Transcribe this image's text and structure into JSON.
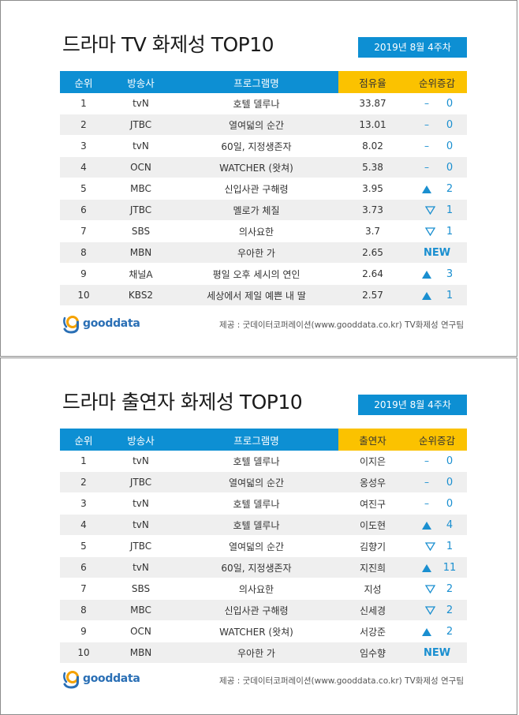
{
  "panel1": {
    "title": "드라마 TV 화제성 TOP10",
    "date": "2019년 8월 4주차",
    "headers": [
      "순위",
      "방송사",
      "프로그램명",
      "점유율",
      "순위증감"
    ],
    "rows": [
      {
        "rank": "1",
        "broadcaster": "tvN",
        "program": "호텔 델루나",
        "value": "33.87",
        "change": "same",
        "change_num": "0"
      },
      {
        "rank": "2",
        "broadcaster": "JTBC",
        "program": "열여덟의 순간",
        "value": "13.01",
        "change": "same",
        "change_num": "0"
      },
      {
        "rank": "3",
        "broadcaster": "tvN",
        "program": "60일, 지정생존자",
        "value": "8.02",
        "change": "same",
        "change_num": "0"
      },
      {
        "rank": "4",
        "broadcaster": "OCN",
        "program": "WATCHER (왓쳐)",
        "value": "5.38",
        "change": "same",
        "change_num": "0"
      },
      {
        "rank": "5",
        "broadcaster": "MBC",
        "program": "신입사관 구해령",
        "value": "3.95",
        "change": "up",
        "change_num": "2"
      },
      {
        "rank": "6",
        "broadcaster": "JTBC",
        "program": "멜로가 체질",
        "value": "3.73",
        "change": "down",
        "change_num": "1"
      },
      {
        "rank": "7",
        "broadcaster": "SBS",
        "program": "의사요한",
        "value": "3.7",
        "change": "down",
        "change_num": "1"
      },
      {
        "rank": "8",
        "broadcaster": "MBN",
        "program": "우아한 가",
        "value": "2.65",
        "change": "new",
        "change_num": "NEW"
      },
      {
        "rank": "9",
        "broadcaster": "채널A",
        "program": "평일 오후 세시의 연인",
        "value": "2.64",
        "change": "up",
        "change_num": "3"
      },
      {
        "rank": "10",
        "broadcaster": "KBS2",
        "program": "세상에서 제일 예쁜 내 딸",
        "value": "2.57",
        "change": "up",
        "change_num": "1"
      }
    ],
    "logo": "gooddata",
    "source": "제공 : 굿데이터코퍼레이션(www.gooddata.co.kr) TV화제성 연구팀"
  },
  "panel2": {
    "title": "드라마 출연자 화제성 TOP10",
    "date": "2019년 8월 4주차",
    "headers": [
      "순위",
      "방송사",
      "프로그램명",
      "출연자",
      "순위증감"
    ],
    "rows": [
      {
        "rank": "1",
        "broadcaster": "tvN",
        "program": "호텔 델루나",
        "value": "이지은",
        "change": "same",
        "change_num": "0"
      },
      {
        "rank": "2",
        "broadcaster": "JTBC",
        "program": "열여덟의 순간",
        "value": "옹성우",
        "change": "same",
        "change_num": "0"
      },
      {
        "rank": "3",
        "broadcaster": "tvN",
        "program": "호텔 델루나",
        "value": "여진구",
        "change": "same",
        "change_num": "0"
      },
      {
        "rank": "4",
        "broadcaster": "tvN",
        "program": "호텔 델루나",
        "value": "이도현",
        "change": "up",
        "change_num": "4"
      },
      {
        "rank": "5",
        "broadcaster": "JTBC",
        "program": "열여덟의 순간",
        "value": "김향기",
        "change": "down",
        "change_num": "1"
      },
      {
        "rank": "6",
        "broadcaster": "tvN",
        "program": "60일, 지정생존자",
        "value": "지진희",
        "change": "up",
        "change_num": "11"
      },
      {
        "rank": "7",
        "broadcaster": "SBS",
        "program": "의사요한",
        "value": "지성",
        "change": "down",
        "change_num": "2"
      },
      {
        "rank": "8",
        "broadcaster": "MBC",
        "program": "신입사관 구해령",
        "value": "신세경",
        "change": "down",
        "change_num": "2"
      },
      {
        "rank": "9",
        "broadcaster": "OCN",
        "program": "WATCHER (왓쳐)",
        "value": "서강준",
        "change": "up",
        "change_num": "2"
      },
      {
        "rank": "10",
        "broadcaster": "MBN",
        "program": "우아한 가",
        "value": "임수향",
        "change": "new",
        "change_num": "NEW"
      }
    ],
    "logo": "gooddata",
    "source": "제공 : 굿데이터코퍼레이션(www.gooddata.co.kr) TV화제성 연구팀"
  },
  "colors": {
    "header_blue": "#0d8fd3",
    "header_yellow": "#fbc200",
    "change_blue": "#1a8fd0",
    "row_stripe": "#efefef"
  }
}
